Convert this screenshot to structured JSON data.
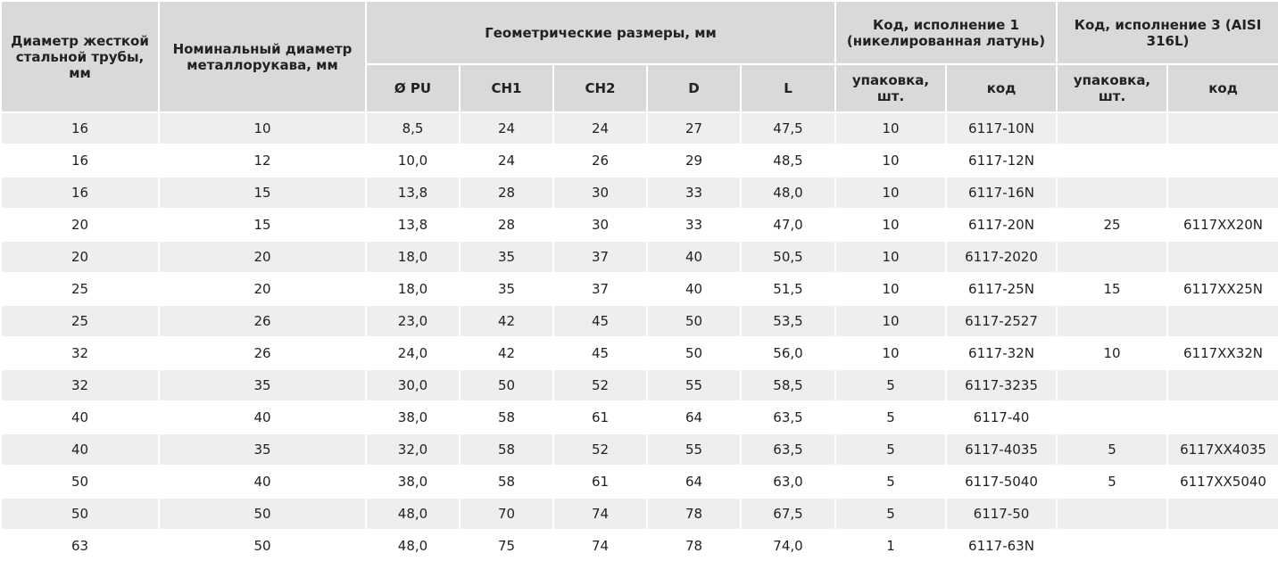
{
  "header": {
    "col_rigid_pipe": "Диаметр жесткой стальной трубы, мм",
    "col_nominal": "Номинальный диаметр металлорукава, мм",
    "col_geometry": "Геометрические размеры, мм",
    "col_exec1": "Код, исполнение 1 (никелированная латунь)",
    "col_exec3": "Код, исполнение 3 (AISI 316L)",
    "sub_pu": "Ø PU",
    "sub_ch1": "CH1",
    "sub_ch2": "CH2",
    "sub_d": "D",
    "sub_l": "L",
    "sub_pack1": "упаковка, шт.",
    "sub_code1": "код",
    "sub_pack3": "упаковка, шт.",
    "sub_code3": "код"
  },
  "rows": [
    [
      "16",
      "10",
      "8,5",
      "24",
      "24",
      "27",
      "47,5",
      "10",
      "6117-10N",
      "",
      ""
    ],
    [
      "16",
      "12",
      "10,0",
      "24",
      "26",
      "29",
      "48,5",
      "10",
      "6117-12N",
      "",
      ""
    ],
    [
      "16",
      "15",
      "13,8",
      "28",
      "30",
      "33",
      "48,0",
      "10",
      "6117-16N",
      "",
      ""
    ],
    [
      "20",
      "15",
      "13,8",
      "28",
      "30",
      "33",
      "47,0",
      "10",
      "6117-20N",
      "25",
      "6117XX20N"
    ],
    [
      "20",
      "20",
      "18,0",
      "35",
      "37",
      "40",
      "50,5",
      "10",
      "6117-2020",
      "",
      ""
    ],
    [
      "25",
      "20",
      "18,0",
      "35",
      "37",
      "40",
      "51,5",
      "10",
      "6117-25N",
      "15",
      "6117XX25N"
    ],
    [
      "25",
      "26",
      "23,0",
      "42",
      "45",
      "50",
      "53,5",
      "10",
      "6117-2527",
      "",
      ""
    ],
    [
      "32",
      "26",
      "24,0",
      "42",
      "45",
      "50",
      "56,0",
      "10",
      "6117-32N",
      "10",
      "6117XX32N"
    ],
    [
      "32",
      "35",
      "30,0",
      "50",
      "52",
      "55",
      "58,5",
      "5",
      "6117-3235",
      "",
      ""
    ],
    [
      "40",
      "40",
      "38,0",
      "58",
      "61",
      "64",
      "63,5",
      "5",
      "6117-40",
      "",
      ""
    ],
    [
      "40",
      "35",
      "32,0",
      "58",
      "52",
      "55",
      "63,5",
      "5",
      "6117-4035",
      "5",
      "6117XX4035"
    ],
    [
      "50",
      "40",
      "38,0",
      "58",
      "61",
      "64",
      "63,0",
      "5",
      "6117-5040",
      "5",
      "6117XX5040"
    ],
    [
      "50",
      "50",
      "48,0",
      "70",
      "74",
      "78",
      "67,5",
      "5",
      "6117-50",
      "",
      ""
    ],
    [
      "63",
      "50",
      "48,0",
      "75",
      "74",
      "78",
      "74,0",
      "1",
      "6117-63N",
      "",
      ""
    ]
  ]
}
